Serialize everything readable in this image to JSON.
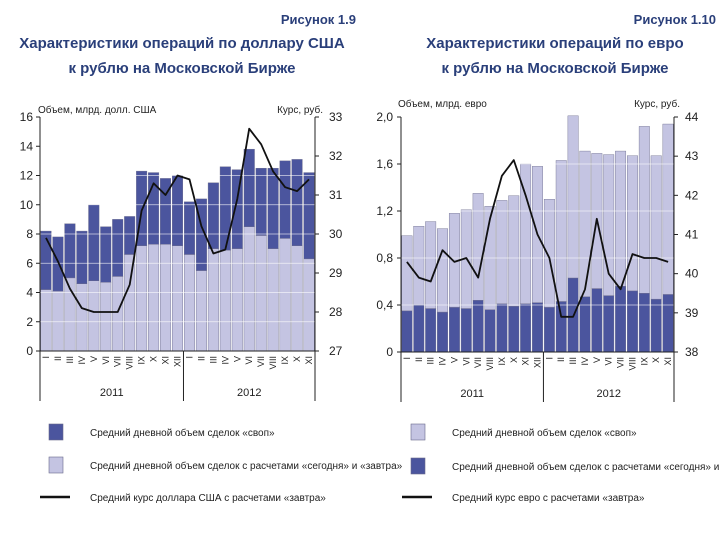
{
  "colors": {
    "dark": "#4b559e",
    "light": "#c4c4e2",
    "line": "#111111",
    "grid": "#ffffff"
  },
  "chart_data": [
    {
      "type": "bar",
      "figure_label": "Рисунок 1.9",
      "title_line1": "Характеристики операций по доллару США",
      "title_line2": "к рублю на Московской Бирже",
      "ylabel_left": "Объем, млрд. долл. США",
      "ylabel_right": "Курс, руб.",
      "ylim_left": [
        0,
        16
      ],
      "yticks_left": [
        "0",
        "2",
        "4",
        "6",
        "8",
        "10",
        "12",
        "14",
        "16"
      ],
      "ylim_right": [
        27,
        33
      ],
      "yticks_right": [
        "27",
        "28",
        "29",
        "30",
        "31",
        "32",
        "33"
      ],
      "categories": [
        "I",
        "II",
        "III",
        "IV",
        "V",
        "VI",
        "VII",
        "VIII",
        "IX",
        "X",
        "XI",
        "XII",
        "I",
        "II",
        "III",
        "IV",
        "V",
        "VI",
        "VII",
        "VIII",
        "IX",
        "X",
        "XI"
      ],
      "years": [
        {
          "label": "2011",
          "from": 0,
          "to": 11
        },
        {
          "label": "2012",
          "from": 12,
          "to": 22
        }
      ],
      "bottom_series": "today_tomorrow",
      "series": [
        {
          "name": "Средний дневной объем сделок «своп»",
          "key": "swap",
          "color": "dark",
          "values": [
            4.0,
            3.7,
            3.7,
            3.6,
            5.2,
            3.8,
            3.9,
            2.6,
            5.1,
            4.9,
            4.5,
            4.8,
            3.6,
            4.9,
            4.5,
            5.7,
            5.4,
            5.3,
            4.6,
            5.5,
            5.3,
            5.9,
            5.9
          ]
        },
        {
          "name": "Средний дневной объем сделок с расчетами «сегодня» и «завтра»",
          "key": "today_tomorrow",
          "color": "light",
          "values": [
            4.2,
            4.1,
            5.0,
            4.6,
            4.8,
            4.7,
            5.1,
            6.6,
            7.2,
            7.3,
            7.3,
            7.2,
            6.6,
            5.5,
            7.0,
            6.9,
            7.0,
            8.5,
            7.9,
            7.0,
            7.7,
            7.2,
            6.3
          ]
        },
        {
          "name": "Средний курс доллара США с расчетами «завтра»",
          "key": "rate",
          "color": "line",
          "type": "line",
          "axis": "right",
          "values": [
            29.9,
            29.3,
            28.6,
            28.1,
            28.0,
            28.0,
            28.0,
            28.7,
            30.6,
            31.3,
            31.0,
            31.5,
            31.4,
            30.2,
            29.5,
            29.6,
            30.9,
            32.7,
            32.3,
            31.6,
            31.2,
            31.1,
            31.4
          ]
        }
      ]
    },
    {
      "type": "bar",
      "figure_label": "Рисунок 1.10",
      "title_line1": "Характеристики операций по евро",
      "title_line2": "к рублю на Московской Бирже",
      "ylabel_left": "Объем, млрд. евро",
      "ylabel_right": "Курс, руб.",
      "ylim_left": [
        0,
        2.0
      ],
      "yticks_left": [
        "0",
        "0,4",
        "0,8",
        "1,2",
        "1,6",
        "2,0"
      ],
      "ylim_right": [
        38,
        44
      ],
      "yticks_right": [
        "38",
        "39",
        "40",
        "41",
        "42",
        "43",
        "44"
      ],
      "categories": [
        "I",
        "II",
        "III",
        "IV",
        "V",
        "VI",
        "VII",
        "VIII",
        "IX",
        "X",
        "XI",
        "XII",
        "I",
        "II",
        "III",
        "IV",
        "V",
        "VI",
        "VII",
        "VIII",
        "IX",
        "X",
        "XI"
      ],
      "years": [
        {
          "label": "2011",
          "from": 0,
          "to": 11
        },
        {
          "label": "2012",
          "from": 12,
          "to": 22
        }
      ],
      "bottom_series": "today_tomorrow",
      "series": [
        {
          "name": "Средний дневной объем сделок «своп»",
          "key": "swap",
          "color": "light",
          "values": [
            0.64,
            0.67,
            0.74,
            0.71,
            0.8,
            0.84,
            0.91,
            0.88,
            0.88,
            0.94,
            1.19,
            1.16,
            0.92,
            1.2,
            1.38,
            1.24,
            1.15,
            1.2,
            1.15,
            1.15,
            1.42,
            1.22,
            1.45
          ]
        },
        {
          "name": "Средний дневной объем сделок с расчетами «сегодня» и «завтра»",
          "key": "today_tomorrow",
          "color": "dark",
          "values": [
            0.35,
            0.4,
            0.37,
            0.34,
            0.38,
            0.37,
            0.44,
            0.36,
            0.41,
            0.39,
            0.41,
            0.42,
            0.38,
            0.43,
            0.63,
            0.47,
            0.54,
            0.48,
            0.56,
            0.52,
            0.5,
            0.45,
            0.49
          ]
        },
        {
          "name": "Средний курс евро с расчетами «завтра»",
          "key": "rate",
          "color": "line",
          "type": "line",
          "axis": "right",
          "values": [
            40.3,
            39.9,
            39.8,
            40.6,
            40.3,
            40.4,
            39.9,
            41.4,
            42.5,
            42.9,
            42.0,
            41.0,
            40.4,
            38.9,
            38.9,
            39.6,
            41.4,
            40.0,
            39.6,
            40.5,
            40.4,
            40.4,
            40.3
          ]
        }
      ]
    }
  ]
}
